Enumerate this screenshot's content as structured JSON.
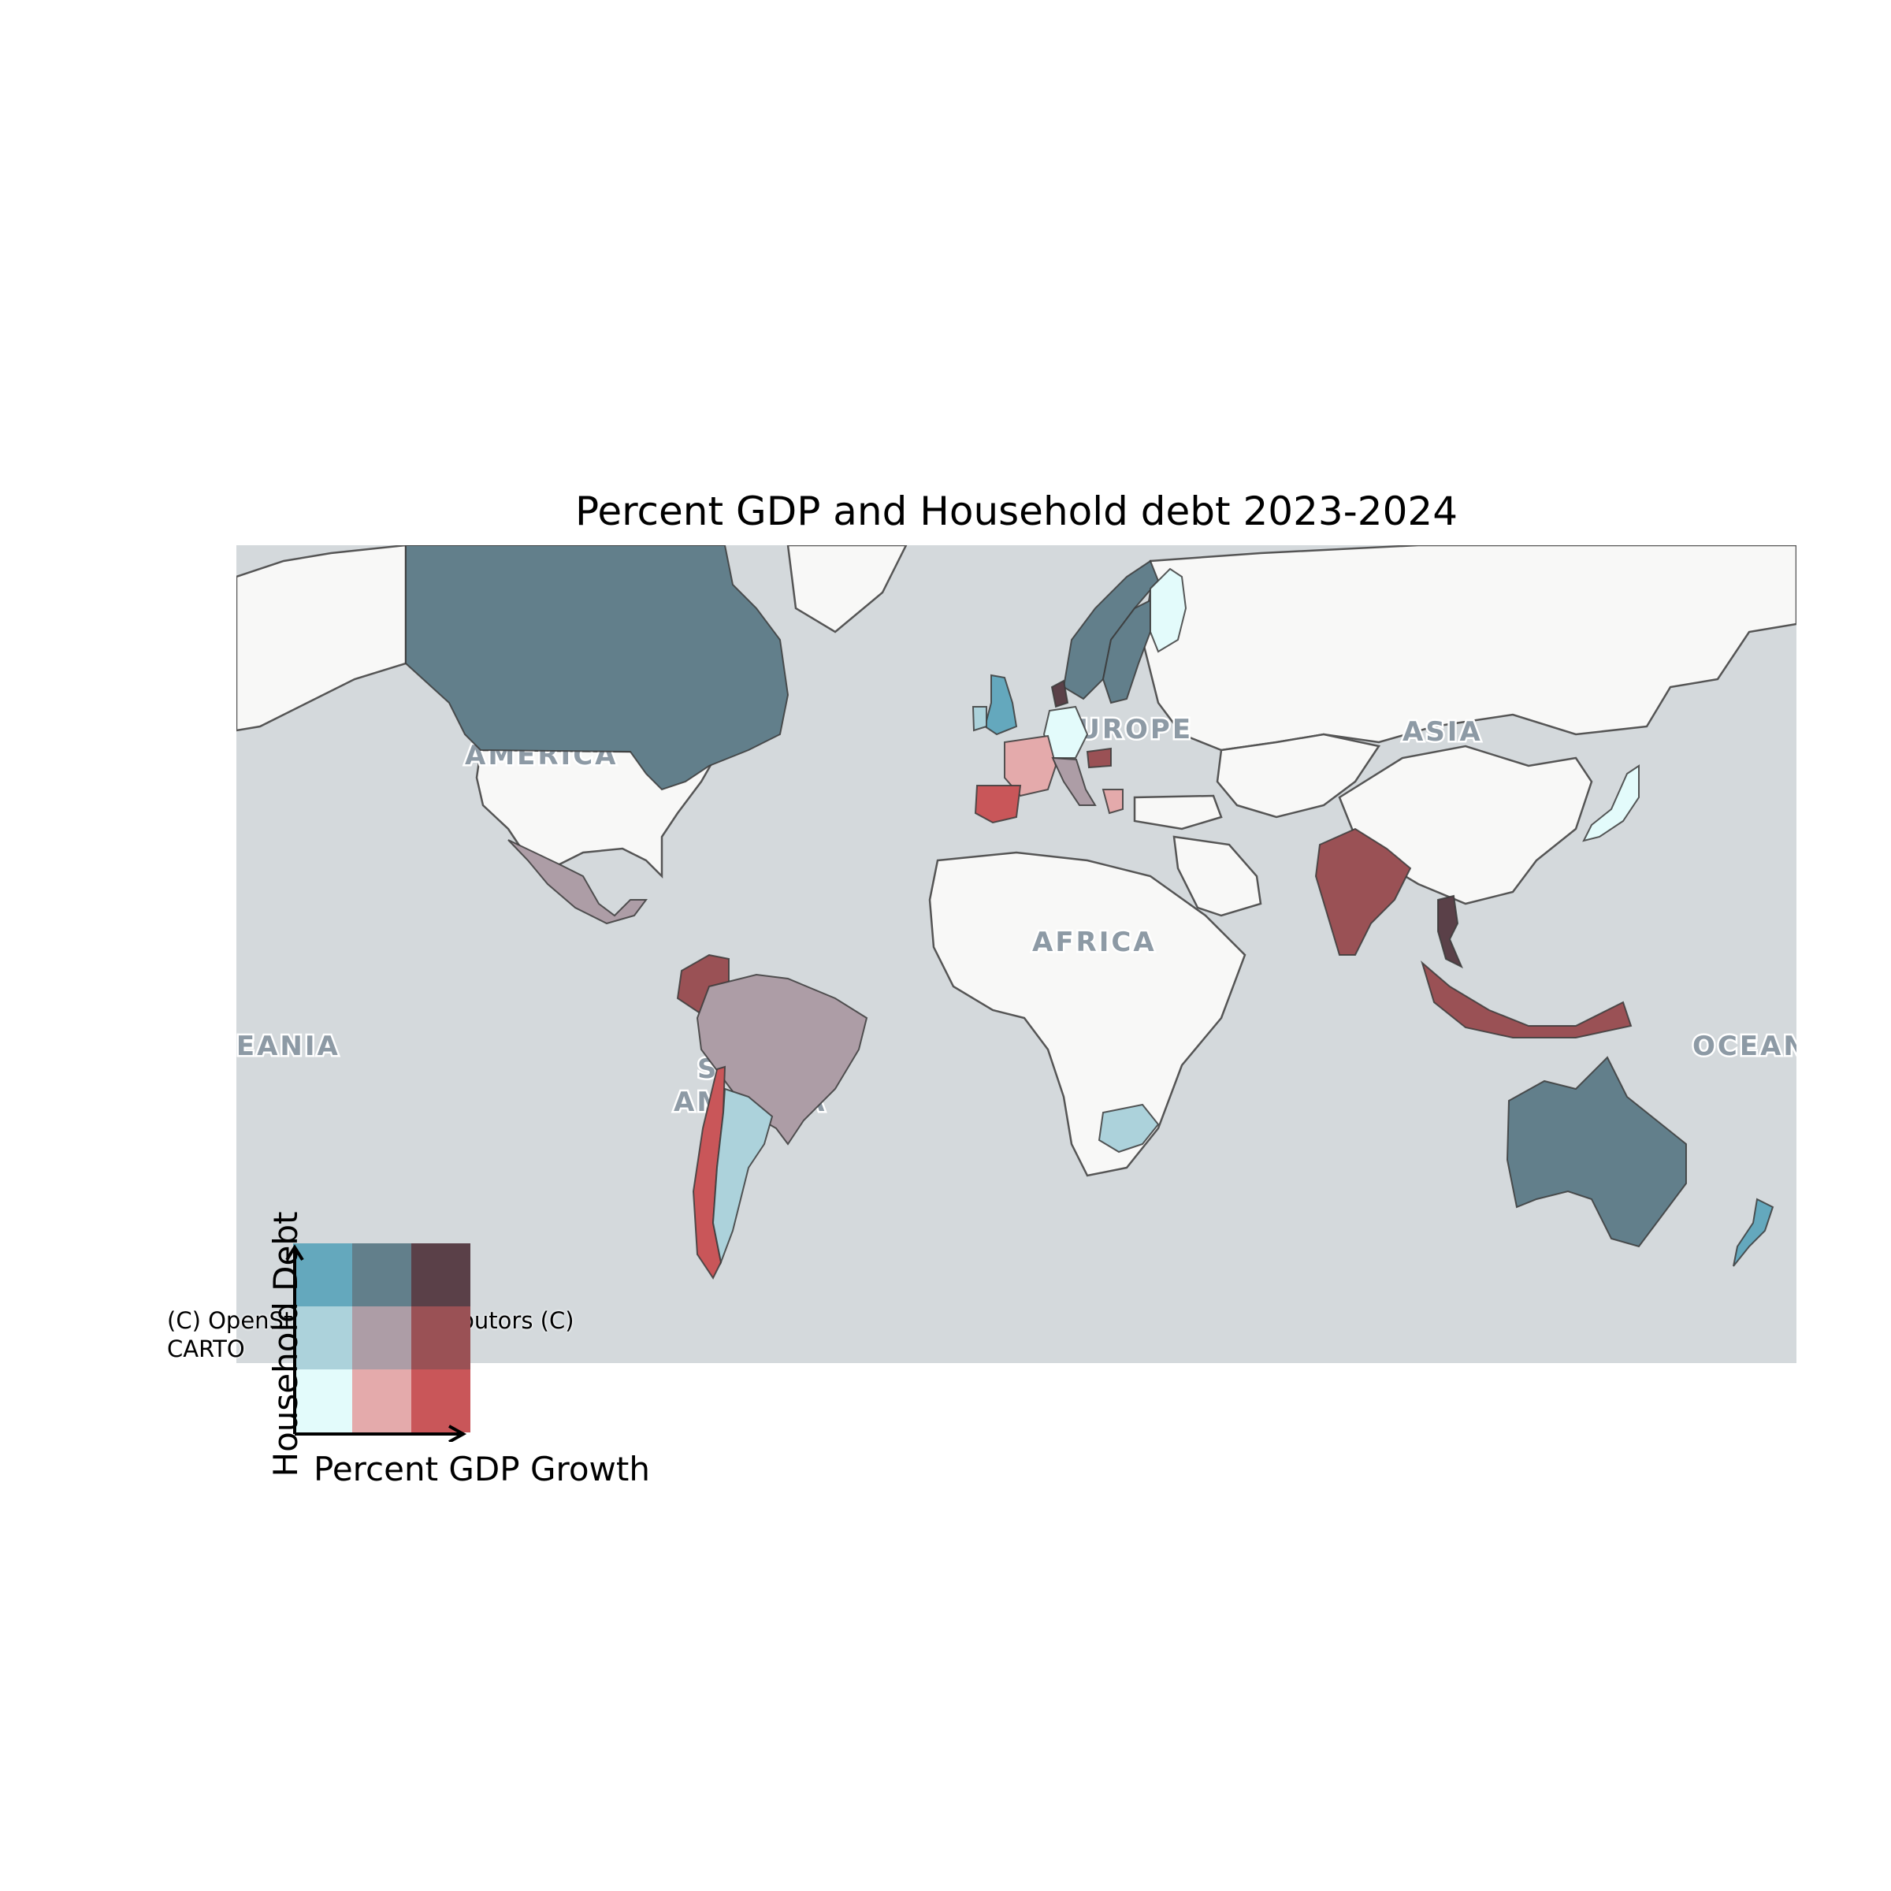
{
  "title": "Percent GDP and Household debt 2023-2024",
  "attribution": [
    "(C) OpenStreetMap contributors (C)",
    "CARTO"
  ],
  "basemap_labels": [
    "AMERICA",
    "ASIA",
    "EUROPE",
    "AFRICA",
    "SOUTH",
    "AMERICA",
    "OCEANIA",
    "OCEANIA"
  ],
  "legend": {
    "xlabel": "Percent GDP Growth",
    "ylabel": "Household Debt",
    "grid_colors": [
      [
        "#64a8bd",
        "#627f8b",
        "#5a4048"
      ],
      [
        "#acd2db",
        "#ad9da6",
        "#9a5155"
      ],
      [
        "#e3fbfb",
        "#e4aaab",
        "#c95659"
      ]
    ]
  },
  "classes": {
    "Canada": "#627f8b",
    "Australia": "#627f8b",
    "Norway": "#627f8b",
    "Sweden": "#627f8b",
    "United Kingdom": "#64a8bd",
    "New Zealand": "#64a8bd",
    "Ireland": "#acd2db",
    "Argentina": "#acd2db",
    "South Africa": "#acd2db",
    "Finland": "#e3fbfb",
    "Germany": "#e3fbfb",
    "Japan": "#e3fbfb",
    "Mexico": "#ad9da6",
    "Brazil": "#ad9da6",
    "Italy": "#ad9da6",
    "France": "#e4aaab",
    "Greece": "#e4aaab",
    "Spain": "#c95659",
    "Chile": "#c95659",
    "Colombia": "#9a5155",
    "India": "#9a5155",
    "Indonesia": "#9a5155",
    "Hungary": "#9a5155",
    "Thailand": "#5a4048",
    "Denmark": "#5a4048"
  }
}
